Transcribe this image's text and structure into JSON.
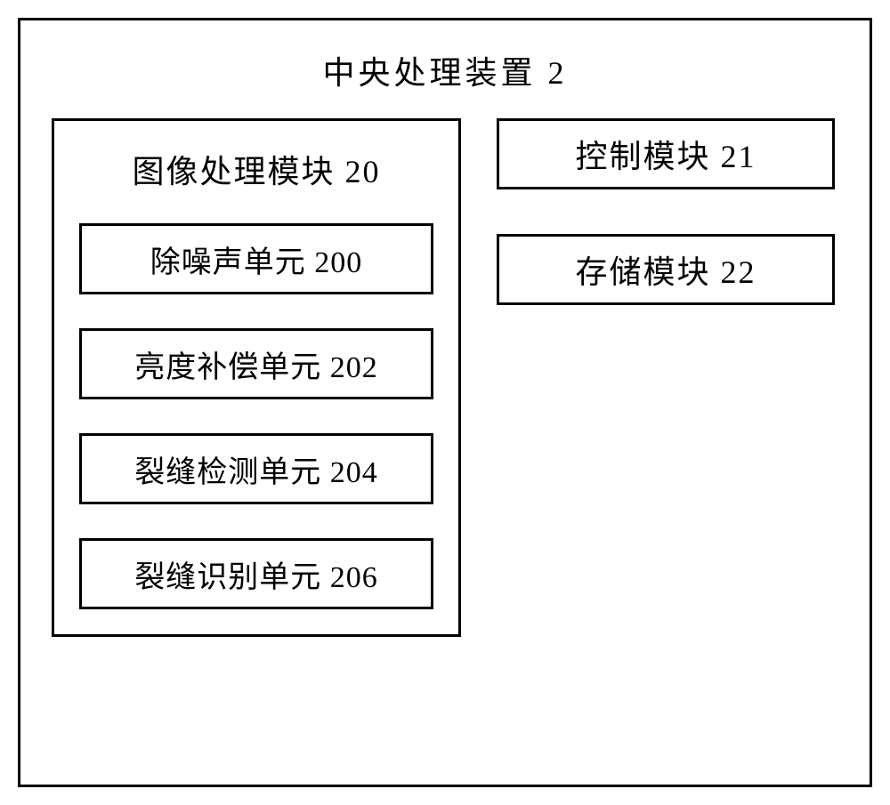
{
  "diagram": {
    "type": "block-diagram",
    "title": "中央处理装置 2",
    "background_color": "#ffffff",
    "border_color": "#000000",
    "border_width": 3,
    "text_color": "#000000",
    "font_family": "SimSun",
    "title_fontsize": 36,
    "box_fontsize": 34,
    "left_module": {
      "title": "图像处理模块 20",
      "units": [
        {
          "label": "除噪声单元 200"
        },
        {
          "label": "亮度补偿单元 202"
        },
        {
          "label": "裂缝检测单元 204"
        },
        {
          "label": "裂缝识别单元 206"
        }
      ]
    },
    "right_modules": [
      {
        "label": "控制模块 21"
      },
      {
        "label": "存储模块 22"
      }
    ]
  }
}
